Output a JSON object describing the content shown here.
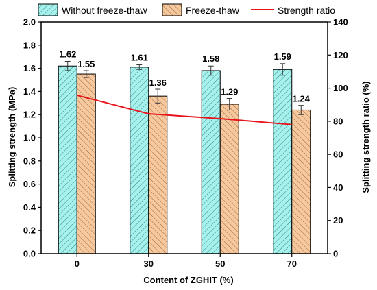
{
  "chart_data": {
    "type": "bar",
    "categories": [
      "0",
      "30",
      "50",
      "70"
    ],
    "xlabel": "Content of ZGHIT (%)",
    "ylabel": "Splitting strength (MPa)",
    "y2label": "Splitting strength ratio (%)",
    "ylim": [
      0,
      2.0
    ],
    "y2lim": [
      0,
      140
    ],
    "y_ticks": [
      "0.0",
      "0.2",
      "0.4",
      "0.6",
      "0.8",
      "1.0",
      "1.2",
      "1.4",
      "1.6",
      "1.8",
      "2.0"
    ],
    "y2_ticks": [
      "0",
      "20",
      "40",
      "60",
      "80",
      "100",
      "120",
      "140"
    ],
    "legend_position": "top",
    "series": [
      {
        "name": "Without freeze-thaw",
        "kind": "bar",
        "color": "#a8f0ec",
        "hatch_color": "#1c8a8a",
        "values": [
          1.62,
          1.61,
          1.58,
          1.59
        ],
        "labels": [
          "1.62",
          "1.61",
          "1.58",
          "1.59"
        ],
        "errors": [
          0.04,
          0.02,
          0.04,
          0.05
        ]
      },
      {
        "name": "Freeze-thaw",
        "kind": "bar",
        "color": "#f5c89e",
        "hatch_color": "#a0643a",
        "values": [
          1.55,
          1.36,
          1.29,
          1.24
        ],
        "labels": [
          "1.55",
          "1.36",
          "1.29",
          "1.24"
        ],
        "errors": [
          0.03,
          0.06,
          0.05,
          0.04
        ]
      },
      {
        "name": "Strength ratio",
        "kind": "line",
        "axis": "right",
        "color": "#e8141b",
        "values": [
          95.7,
          84.5,
          81.6,
          78.0
        ]
      }
    ]
  }
}
